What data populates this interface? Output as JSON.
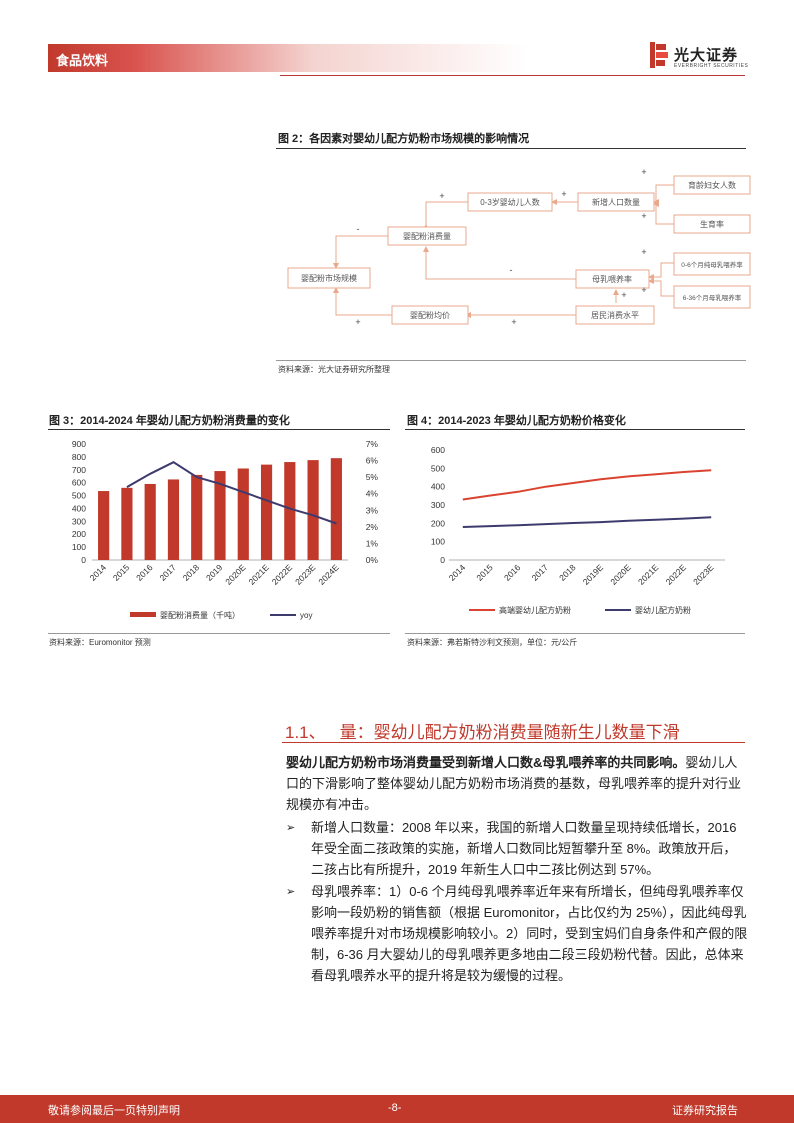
{
  "header": {
    "section_label": "食品饮料",
    "brand_name": "光大证券",
    "brand_en": "EVERBRIGHT SECURITIES"
  },
  "figure2": {
    "title": "图 2：各因素对婴幼儿配方奶粉市场规模的影响情况",
    "source": "资料来源：光大证券研究所整理",
    "nodes": {
      "market": "婴配粉市场规模",
      "consumption": "婴配粉消费量",
      "price": "婴配粉均价",
      "infants": "0-3岁婴幼儿人数",
      "newborns": "新增人口数量",
      "women": "育龄妇女人数",
      "birth_rate": "生育率",
      "bf_rate": "母乳喂养率",
      "income": "居民消费水平",
      "bf_0_6": "0-6个月纯母乳喂养率",
      "bf_6_36": "6-36个月母乳喂养率"
    },
    "signs": {
      "plus": "+",
      "minus": "-"
    }
  },
  "figure3": {
    "title": "图 3：2014-2024 年婴幼儿配方奶粉消费量的变化",
    "source": "资料来源：Euromonitor 预测",
    "chart_data": {
      "type": "bar",
      "categories": [
        "2014",
        "2015",
        "2016",
        "2017",
        "2018",
        "2019",
        "2020E",
        "2021E",
        "2022E",
        "2023E",
        "2024E"
      ],
      "series": [
        {
          "name": "婴配粉消费量（千吨）",
          "axis": "left",
          "type": "bar",
          "color": "#c0392b",
          "values": [
            535,
            560,
            590,
            625,
            660,
            690,
            710,
            740,
            760,
            775,
            790
          ]
        },
        {
          "name": "yoy",
          "axis": "right",
          "type": "line",
          "color": "#3d3b6e",
          "values": [
            null,
            0.044,
            0.052,
            0.059,
            0.05,
            0.046,
            0.041,
            0.036,
            0.031,
            0.027,
            0.022
          ]
        }
      ],
      "y_left": {
        "min": 0,
        "max": 900,
        "ticks": [
          "0",
          "100",
          "200",
          "300",
          "400",
          "500",
          "600",
          "700",
          "800",
          "900"
        ]
      },
      "y_right": {
        "min": 0,
        "max": 0.07,
        "ticks": [
          "0%",
          "1%",
          "2%",
          "3%",
          "4%",
          "5%",
          "6%",
          "7%"
        ]
      },
      "legend_position": "bottom"
    }
  },
  "figure4": {
    "title": "图 4：2014-2023 年婴幼儿配方奶粉价格变化",
    "source": "资料来源：弗若斯特沙利文预测，单位：元/公斤",
    "chart_data": {
      "type": "line",
      "categories": [
        "2014",
        "2015",
        "2016",
        "2017",
        "2018",
        "2019E",
        "2020E",
        "2021E",
        "2022E",
        "2023E"
      ],
      "series": [
        {
          "name": "高端婴幼儿配方奶粉",
          "color": "#d9432f",
          "values": [
            330,
            352,
            372,
            400,
            420,
            440,
            456,
            468,
            480,
            490
          ]
        },
        {
          "name": "婴幼儿配方奶粉",
          "color": "#3d3b6e",
          "values": [
            180,
            185,
            190,
            196,
            202,
            207,
            214,
            220,
            226,
            233
          ]
        }
      ],
      "y": {
        "min": 0,
        "max": 600,
        "ticks": [
          "0",
          "100",
          "200",
          "300",
          "400",
          "500",
          "600"
        ]
      },
      "legend_position": "bottom"
    }
  },
  "section": {
    "number": "1.1、",
    "title": "量：婴幼儿配方奶粉消费量随新生儿数量下滑",
    "lead_bold": "婴幼儿配方奶粉市场消费量受到新增人口数&母乳喂养率的共同影响。",
    "lead_rest": "婴幼儿人口的下滑影响了整体婴幼儿配方奶粉市场消费的基数，母乳喂养率的提升对行业规模亦有冲击。",
    "bullets": [
      "新增人口数量：2008 年以来，我国的新增人口数量呈现持续低增长，2016 年受全面二孩政策的实施，新增人口数同比短暂攀升至 8%。政策放开后，二孩占比有所提升，2019 年新生人口中二孩比例达到 57%。",
      "母乳喂养率：1）0-6 个月纯母乳喂养率近年来有所增长，但纯母乳喂养率仅影响一段奶粉的销售额（根据 Euromonitor，占比仅约为 25%），因此纯母乳喂养率提升对市场规模影响较小。2）同时，受到宝妈们自身条件和产假的限制，6-36 月大婴幼儿的母乳喂养更多地由二段三段奶粉代替。因此，总体来看母乳喂养水平的提升将是较为缓慢的过程。"
    ],
    "bullet_symbol": "➢"
  },
  "footer": {
    "left": "敬请参阅最后一页特别声明",
    "center": "-8-",
    "right": "证券研究报告"
  }
}
